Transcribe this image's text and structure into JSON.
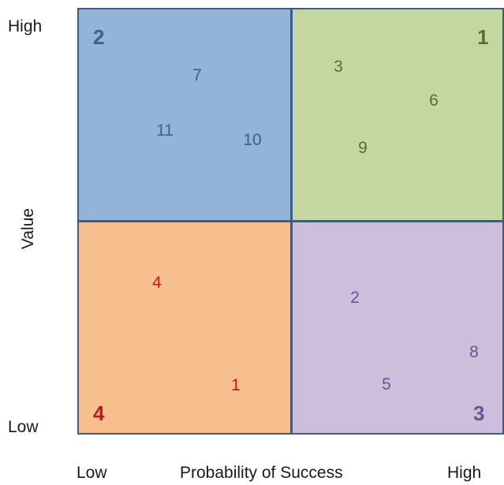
{
  "y_axis": {
    "title": "Value",
    "high": "High",
    "low": "Low"
  },
  "x_axis": {
    "title": "Probability of Success",
    "low": "Low",
    "high": "High"
  },
  "colors": {
    "border": "#3d5b86",
    "q1_fill": "#c4d7a0",
    "q1_text": "#5a6e2e",
    "q2_fill": "#93b3d9",
    "q2_text": "#3e5f8c",
    "q3_fill": "#cdbfdc",
    "q3_text": "#6a5590",
    "q4_fill": "#f7bf8e",
    "q4_text": "#c0171b"
  },
  "quadrants": {
    "q1": {
      "number": "1",
      "items": [
        "3",
        "6",
        "9"
      ]
    },
    "q2": {
      "number": "2",
      "items": [
        "7",
        "11",
        "10"
      ]
    },
    "q3": {
      "number": "3",
      "items": [
        "2",
        "8",
        "5"
      ]
    },
    "q4": {
      "number": "4",
      "items": [
        "4",
        "1"
      ]
    }
  }
}
